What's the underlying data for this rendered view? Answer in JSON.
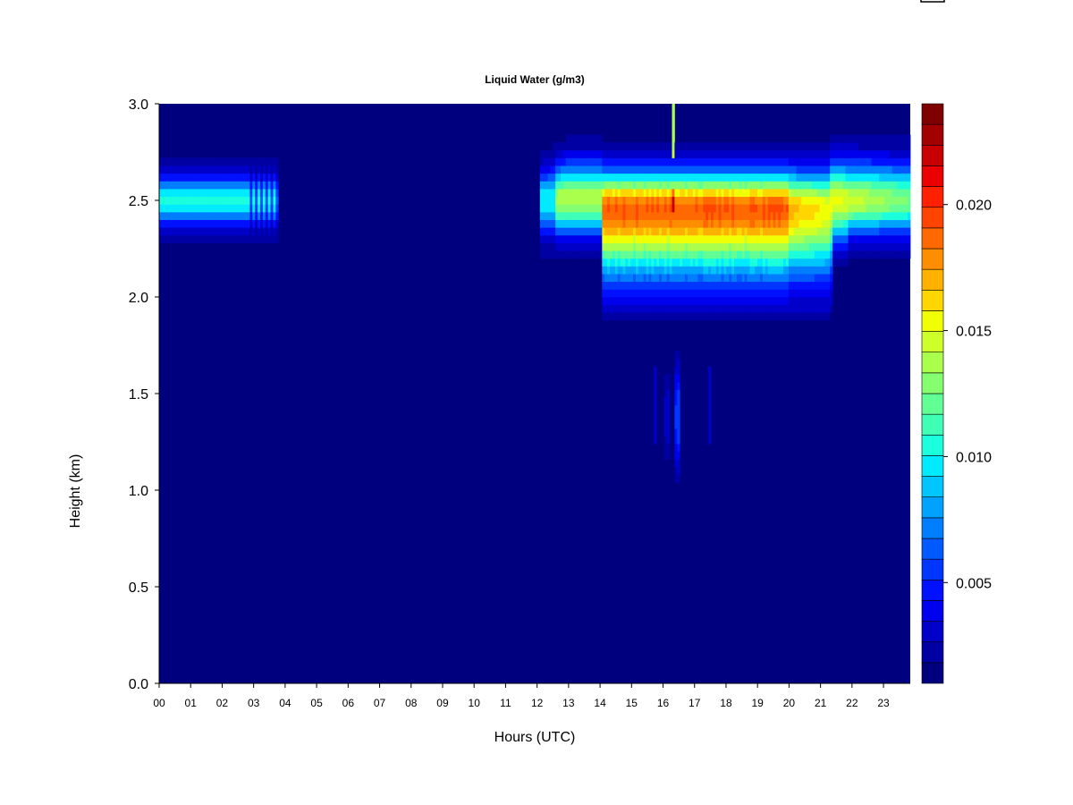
{
  "chart_data": {
    "type": "heatmap",
    "title": "Liquid Water (g/m3)",
    "xlabel": "Hours (UTC)",
    "ylabel": "Height (km)",
    "xlim": [
      0,
      23.85
    ],
    "ylim": [
      0.0,
      3.0
    ],
    "x_ticks": [
      "00",
      "01",
      "02",
      "03",
      "04",
      "05",
      "06",
      "07",
      "08",
      "09",
      "10",
      "11",
      "12",
      "13",
      "14",
      "15",
      "16",
      "17",
      "18",
      "19",
      "20",
      "21",
      "22",
      "23"
    ],
    "y_ticks": [
      "0.0",
      "0.5",
      "1.0",
      "1.5",
      "2.0",
      "2.5",
      "3.0"
    ],
    "colorbar": {
      "vmin": 0.001,
      "vmax": 0.024,
      "ticks": [
        0.005,
        0.01,
        0.015,
        0.02
      ],
      "tick_labels": [
        "0.005",
        "0.010",
        "0.015",
        "0.020"
      ],
      "colors": [
        "#00007f",
        "#0000a3",
        "#0000c8",
        "#0000ec",
        "#0011ff",
        "#0036ff",
        "#005aff",
        "#007eff",
        "#00a2ff",
        "#00c6ff",
        "#00ebff",
        "#1bffdc",
        "#3fffb7",
        "#62ff94",
        "#85ff70",
        "#aaff4d",
        "#cdff29",
        "#f1ff05",
        "#ffd600",
        "#ffb100",
        "#ff8d00",
        "#ff6900",
        "#ff4400",
        "#ff2000",
        "#eb0000",
        "#c70000",
        "#a30000",
        "#7f0000"
      ]
    },
    "features": [
      {
        "name": "upper cloud layer 00-04 UTC",
        "x_range": [
          0.0,
          3.8
        ],
        "center_km": 2.5,
        "base_km": 2.3,
        "top_km": 2.7,
        "peak_lwc": 0.0095
      },
      {
        "name": "upper cloud layer 12-24 UTC",
        "x_range": [
          12.1,
          23.85
        ],
        "center_km": 2.5,
        "base_km": 2.07,
        "top_km": 2.7,
        "peak_lwc": 0.018
      },
      {
        "name": "intense column near 16:20 UTC",
        "x_range": [
          16.05,
          16.55
        ],
        "height_range_km": [
          1.9,
          3.0
        ],
        "peak_lwc": 0.0235
      },
      {
        "name": "lower cloud near 16:20 UTC",
        "x_range": [
          15.7,
          17.5
        ],
        "height_range_km": [
          1.03,
          1.75
        ],
        "peak_lwc": 0.011
      }
    ]
  }
}
